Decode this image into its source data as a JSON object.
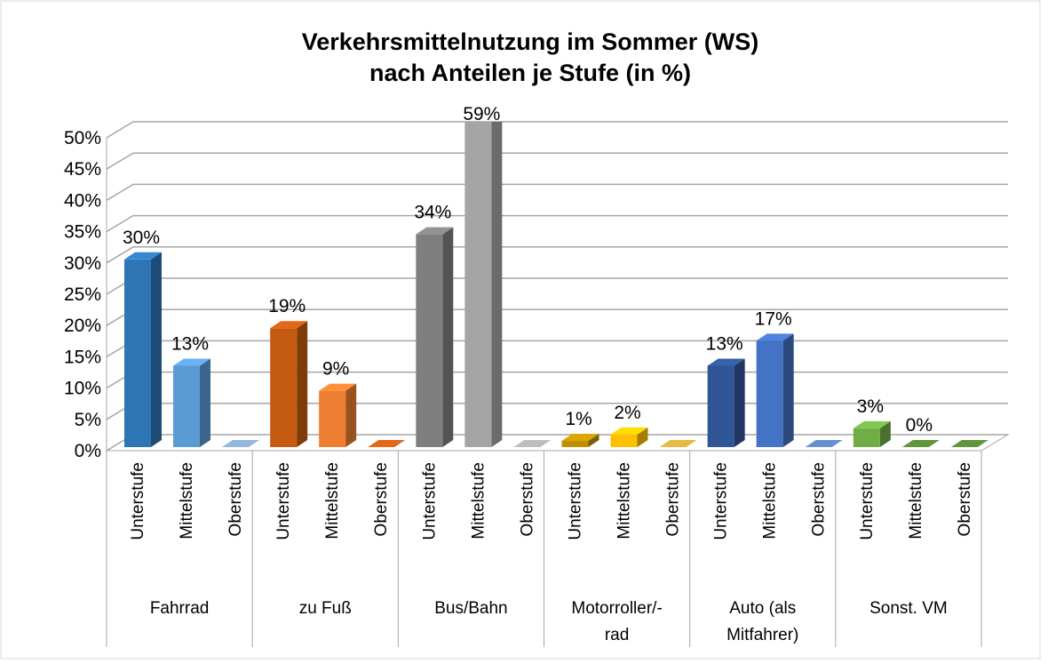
{
  "chart_data": {
    "type": "bar",
    "title": [
      "Verkehrsmittelnutzung im Sommer (WS)",
      "nach Anteilen je Stufe (in %)"
    ],
    "groups": [
      {
        "name": [
          "Fahrrad"
        ],
        "levels": [
          "Unterstufe",
          "Mittelstufe",
          "Oberstufe"
        ],
        "values": [
          30,
          13,
          0
        ],
        "value_labels": [
          "30%",
          "13%",
          null
        ],
        "colors": [
          "#2e75b6",
          "#5b9bd5",
          "#7f9fc4"
        ]
      },
      {
        "name": [
          "zu Fuß"
        ],
        "levels": [
          "Unterstufe",
          "Mittelstufe",
          "Oberstufe"
        ],
        "values": [
          19,
          9,
          0
        ],
        "value_labels": [
          "19%",
          "9%",
          null
        ],
        "colors": [
          "#c55a11",
          "#ed7d31",
          "#c55a11"
        ]
      },
      {
        "name": [
          "Bus/Bahn"
        ],
        "levels": [
          "Unterstufe",
          "Mittelstufe",
          "Oberstufe"
        ],
        "values": [
          34,
          59,
          0
        ],
        "value_labels": [
          "34%",
          "59%",
          null
        ],
        "colors": [
          "#7f7f7f",
          "#a5a5a5",
          "#a5a5a5"
        ]
      },
      {
        "name": [
          "Motorroller/-",
          "rad"
        ],
        "levels": [
          "Unterstufe",
          "Mittelstufe",
          "Oberstufe"
        ],
        "values": [
          1,
          2,
          0
        ],
        "value_labels": [
          "1%",
          "2%",
          null
        ],
        "colors": [
          "#bf9000",
          "#ffc000",
          "#c9a23b"
        ]
      },
      {
        "name": [
          "Auto (als",
          "Mitfahrer)"
        ],
        "levels": [
          "Unterstufe",
          "Mittelstufe",
          "Oberstufe"
        ],
        "values": [
          13,
          17,
          0
        ],
        "value_labels": [
          "13%",
          "17%",
          null
        ],
        "colors": [
          "#2f5597",
          "#4472c4",
          "#5b7db3"
        ]
      },
      {
        "name": [
          "Sonst. VM"
        ],
        "levels": [
          "Unterstufe",
          "Mittelstufe",
          "Oberstufe"
        ],
        "values": [
          3,
          0,
          0
        ],
        "value_labels": [
          "3%",
          "0%",
          null
        ],
        "colors": [
          "#70ad47",
          "#548235",
          "#548235"
        ]
      }
    ],
    "ylim": [
      0,
      50
    ],
    "yticks": [
      {
        "value": 0,
        "label": "0%"
      },
      {
        "value": 5,
        "label": "5%"
      },
      {
        "value": 10,
        "label": "10%"
      },
      {
        "value": 15,
        "label": "15%"
      },
      {
        "value": 20,
        "label": "20%"
      },
      {
        "value": 25,
        "label": "25%"
      },
      {
        "value": 30,
        "label": "30%"
      },
      {
        "value": 35,
        "label": "35%"
      },
      {
        "value": 40,
        "label": "40%"
      },
      {
        "value": 45,
        "label": "45%"
      },
      {
        "value": 50,
        "label": "50%"
      }
    ],
    "grid": true
  }
}
